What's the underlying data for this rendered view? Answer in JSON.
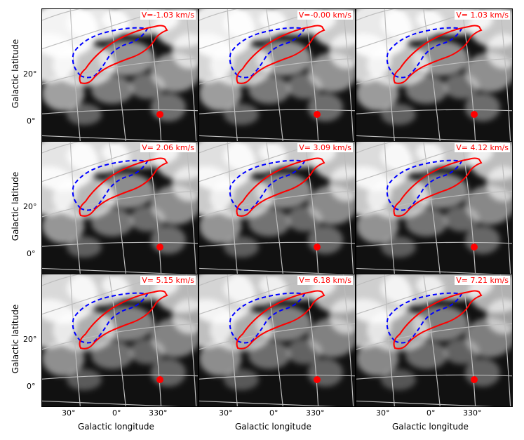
{
  "figure": {
    "panels": [
      {
        "velocity_label": "V=-1.03 km/s"
      },
      {
        "velocity_label": "V=-0.00 km/s"
      },
      {
        "velocity_label": "V= 1.03 km/s"
      },
      {
        "velocity_label": "V= 2.06 km/s"
      },
      {
        "velocity_label": "V= 3.09 km/s"
      },
      {
        "velocity_label": "V= 4.12 km/s"
      },
      {
        "velocity_label": "V= 5.15 km/s"
      },
      {
        "velocity_label": "V= 6.18 km/s"
      },
      {
        "velocity_label": "V= 7.21 km/s"
      }
    ],
    "y_axis": {
      "label": "Galactic latitude",
      "ticks": [
        "20°",
        "0°"
      ]
    },
    "x_axis": {
      "label": "Galactic longitude",
      "ticks": [
        "30°",
        "0°",
        "330°"
      ]
    },
    "colors": {
      "red_contour": "#ff0000",
      "blue_contour": "#0000ff",
      "grid": "#bdbdbd",
      "marker": "#ff0000"
    }
  }
}
